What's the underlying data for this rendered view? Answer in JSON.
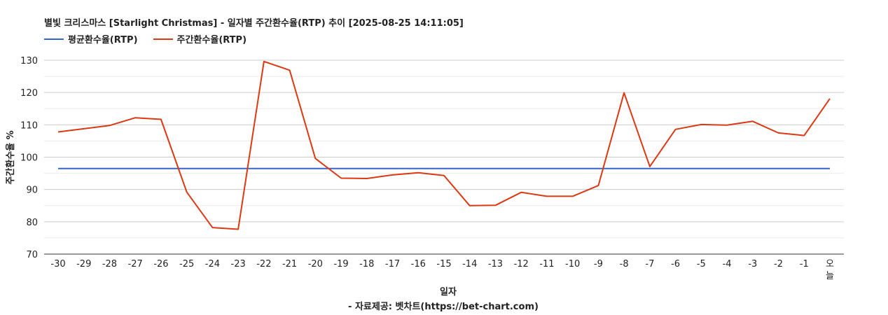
{
  "chart_data": {
    "type": "line",
    "title": "별빛 크리스마스 [Starlight Christmas] - 일자별 주간환수율(RTP) 추이 [2025-08-25 14:11:05]",
    "xlabel": "일자",
    "ylabel": "주간환수율 %",
    "credit": "- 자료제공: 벳차트(https://bet-chart.com)",
    "categories": [
      "-30",
      "-29",
      "-28",
      "-27",
      "-26",
      "-25",
      "-24",
      "-23",
      "-22",
      "-21",
      "-20",
      "-19",
      "-18",
      "-17",
      "-16",
      "-15",
      "-14",
      "-13",
      "-12",
      "-11",
      "-10",
      "-9",
      "-8",
      "-7",
      "-6",
      "-5",
      "-4",
      "-3",
      "-2",
      "-1",
      "오늘"
    ],
    "yticks": [
      70,
      80,
      90,
      100,
      110,
      120,
      130
    ],
    "ylim": [
      70,
      130
    ],
    "grid": true,
    "legend_position": "top-left",
    "series": [
      {
        "name": "평균환수율(RTP)",
        "color": "#3366cc",
        "values": [
          96.5,
          96.5,
          96.5,
          96.5,
          96.5,
          96.5,
          96.5,
          96.5,
          96.5,
          96.5,
          96.5,
          96.5,
          96.5,
          96.5,
          96.5,
          96.5,
          96.5,
          96.5,
          96.5,
          96.5,
          96.5,
          96.5,
          96.5,
          96.5,
          96.5,
          96.5,
          96.5,
          96.5,
          96.5,
          96.5,
          96.5
        ]
      },
      {
        "name": "주간환수율(RTP)",
        "color": "#dc3912",
        "values": [
          107.8,
          108.8,
          109.8,
          112.2,
          111.7,
          89.2,
          78.2,
          77.7,
          129.6,
          126.9,
          99.6,
          93.5,
          93.4,
          94.5,
          95.2,
          94.3,
          85.0,
          85.1,
          89.1,
          87.9,
          87.9,
          91.2,
          119.9,
          97.1,
          108.6,
          110.1,
          109.9,
          111.1,
          107.5,
          106.7,
          118.1
        ]
      }
    ]
  }
}
